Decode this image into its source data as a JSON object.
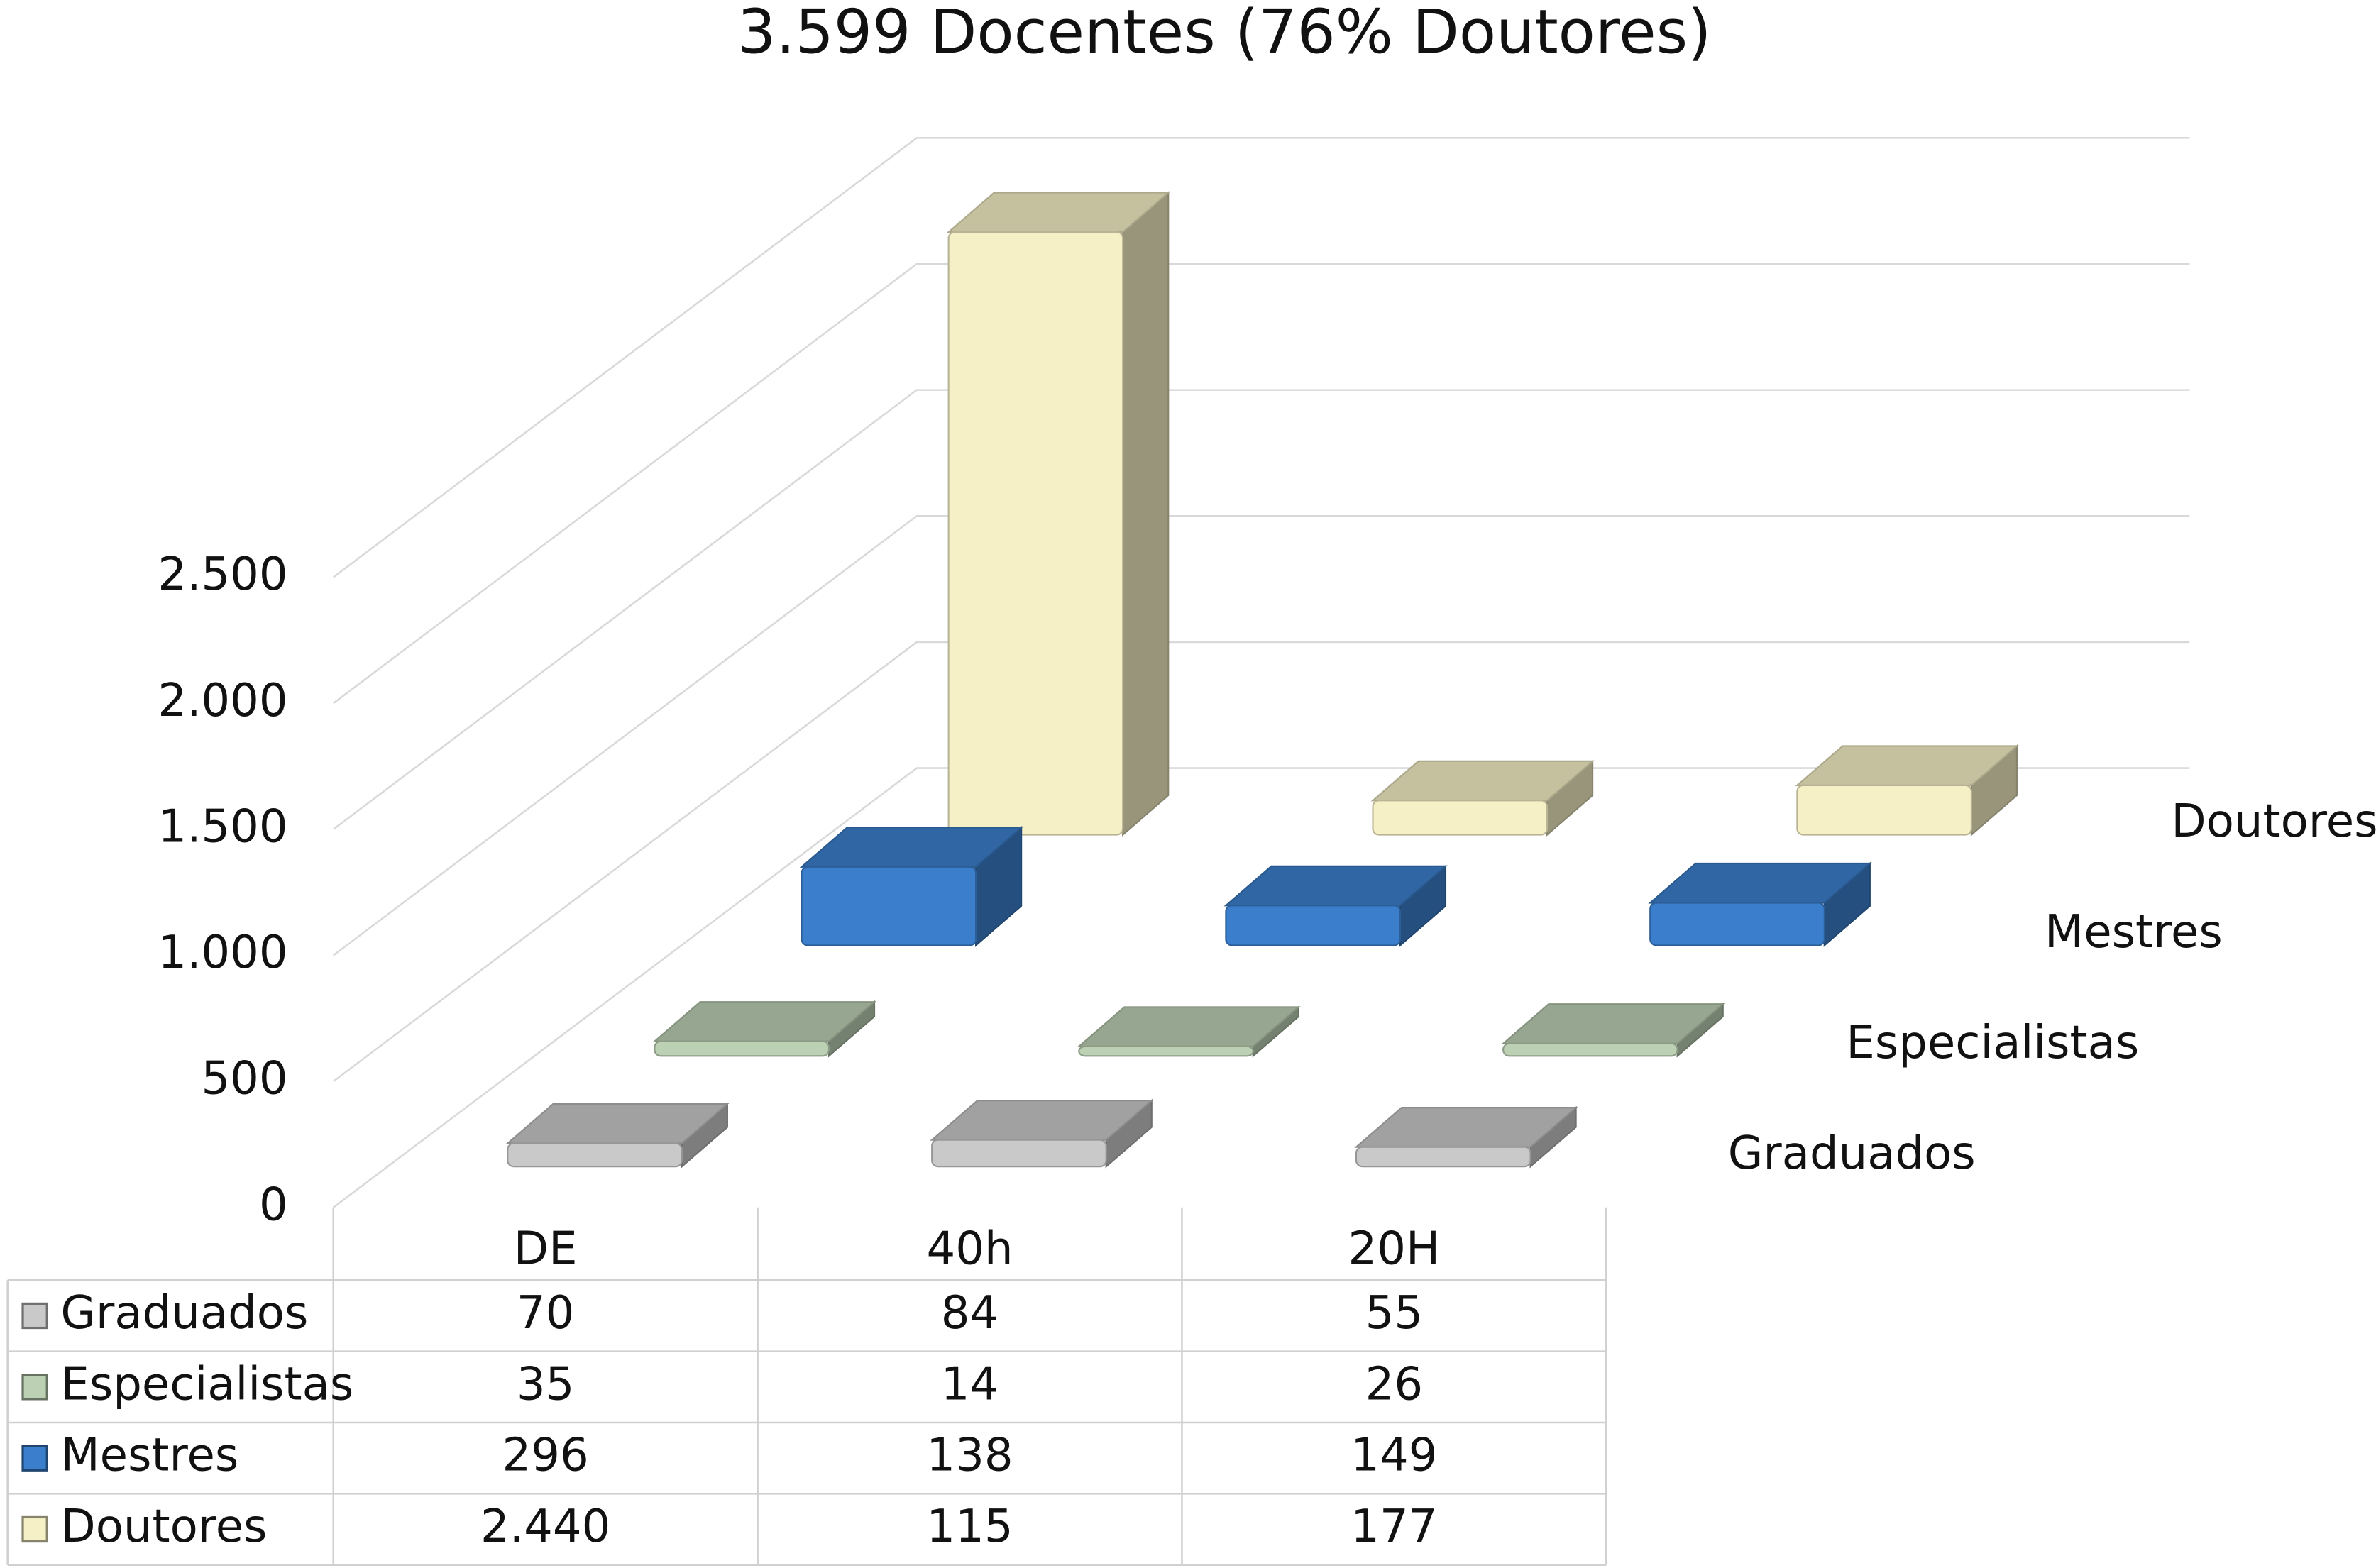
{
  "chart_data": {
    "type": "bar",
    "title": "3.599 Docentes (76% Doutores)",
    "categories": [
      "DE",
      "40h",
      "20H"
    ],
    "series": [
      {
        "name": "Graduados",
        "color": "#c9c9c9",
        "values": [
          70,
          84,
          55
        ]
      },
      {
        "name": "Especialistas",
        "color": "#bcd0b4",
        "values": [
          35,
          14,
          26
        ]
      },
      {
        "name": "Mestres",
        "color": "#3b7fcc",
        "values": [
          296,
          138,
          149
        ]
      },
      {
        "name": "Doutores",
        "color": "#f6f0c6",
        "values": [
          2440,
          115,
          177
        ],
        "value_labels": [
          "2.440",
          "115",
          "177"
        ]
      }
    ],
    "ylim": [
      0,
      2500
    ],
    "yticks": [
      0,
      500,
      {
        "value": 1000,
        "label": "1.000"
      },
      {
        "value": 1500,
        "label": "1.500"
      },
      {
        "value": 2000,
        "label": "2.000"
      },
      {
        "value": 2500,
        "label": "2.500"
      }
    ],
    "grid": true
  }
}
